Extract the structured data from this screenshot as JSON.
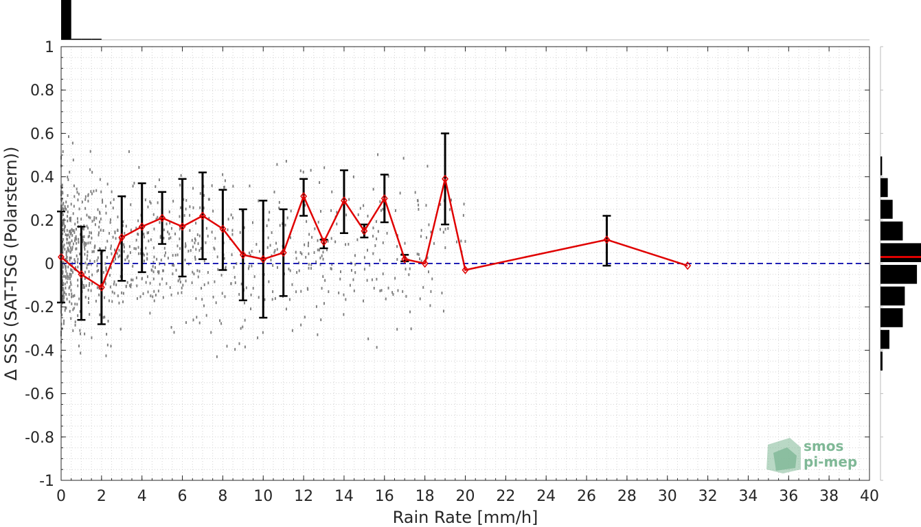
{
  "chart_data": {
    "type": "line",
    "xlabel": "Rain Rate [mm/h]",
    "ylabel": "Δ SSS (SAT-TSG (Polarstern))",
    "xlim": [
      0,
      40
    ],
    "ylim": [
      -1,
      1
    ],
    "xticks": [
      "0",
      "2",
      "4",
      "6",
      "8",
      "10",
      "12",
      "14",
      "16",
      "18",
      "20",
      "22",
      "24",
      "26",
      "28",
      "30",
      "32",
      "34",
      "36",
      "38",
      "40"
    ],
    "yticks": [
      "-1",
      "-0.8",
      "-0.6",
      "-0.4",
      "-0.2",
      "0",
      "0.2",
      "0.4",
      "0.6",
      "0.8",
      "1"
    ],
    "grid": true,
    "reference_line": {
      "y": 0,
      "color": "#1f1fb4",
      "style": "dashed"
    },
    "series": [
      {
        "x": [
          0,
          1,
          2,
          3,
          4,
          5,
          6,
          7,
          8,
          9,
          10,
          11,
          12,
          13,
          14,
          15,
          16,
          17,
          18,
          19,
          20,
          27,
          31
        ],
        "y": [
          0.03,
          -0.05,
          -0.11,
          0.12,
          0.17,
          0.21,
          0.17,
          0.22,
          0.16,
          0.04,
          0.02,
          0.05,
          0.31,
          0.1,
          0.29,
          0.15,
          0.3,
          0.02,
          0.0,
          0.39,
          -0.03,
          0.11,
          -0.01
        ],
        "err_low": [
          -0.18,
          -0.26,
          -0.28,
          -0.08,
          -0.04,
          0.09,
          -0.06,
          0.02,
          -0.03,
          -0.17,
          -0.25,
          -0.15,
          0.22,
          0.07,
          0.14,
          0.12,
          0.19,
          0.01,
          0.0,
          0.18,
          -0.03,
          -0.01,
          -0.01
        ],
        "err_high": [
          0.24,
          0.17,
          0.06,
          0.31,
          0.37,
          0.33,
          0.39,
          0.42,
          0.34,
          0.25,
          0.29,
          0.25,
          0.39,
          0.11,
          0.43,
          0.18,
          0.41,
          0.04,
          0.0,
          0.6,
          -0.03,
          0.22,
          -0.01
        ],
        "color": "#e00000"
      }
    ],
    "scatter_density": {
      "color": "#808080",
      "x_range": [
        0,
        20
      ],
      "y_range": [
        -0.6,
        0.9
      ]
    },
    "top_histogram": {
      "bin_edges_x": [
        0,
        0.5,
        1,
        1.5,
        2,
        2.5,
        3
      ],
      "counts_rel": [
        1.0,
        0.02,
        0.01,
        0.005,
        0.0,
        0.0
      ]
    },
    "right_histogram": {
      "bins_y": [
        -0.45,
        -0.35,
        -0.25,
        -0.15,
        -0.05,
        0.05,
        0.15,
        0.25,
        0.35,
        0.45
      ],
      "counts_rel": [
        0.05,
        0.22,
        0.55,
        0.6,
        0.9,
        1.0,
        0.55,
        0.3,
        0.18,
        0.04
      ],
      "mean_line_y": 0.03,
      "mean_line_color": "#e00000"
    },
    "logo_text": [
      "smos",
      "pi-mep"
    ],
    "colors": {
      "axis": "#262626",
      "grid": "#d0d0d0",
      "bars": "#000000",
      "logo": "#7fb896"
    }
  }
}
